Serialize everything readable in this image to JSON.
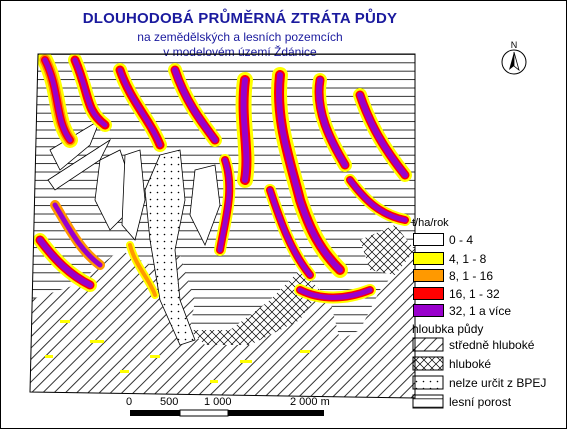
{
  "title": {
    "line1": "DLOUHODOBÁ PRŮMĚRNÁ ZTRÁTA PŮDY",
    "line2": "na zemědělských a lesních pozemcích",
    "line3": "v modelovém území Ždánice"
  },
  "legend": {
    "unit": "t/ha/rok",
    "classes": [
      {
        "label": "0 - 4",
        "color": "#ffffff"
      },
      {
        "label": "4, 1 - 8",
        "color": "#ffff00"
      },
      {
        "label": "8, 1 - 16",
        "color": "#ff9900"
      },
      {
        "label": "16, 1 - 32",
        "color": "#ff0000"
      },
      {
        "label": "32, 1 a více",
        "color": "#9900cc"
      }
    ],
    "soil_depth_title": "hloubka půdy",
    "soil_depth": [
      {
        "label": "středně hluboké",
        "pattern": "diagonal-right"
      },
      {
        "label": "hluboké",
        "pattern": "diagonal-cross"
      },
      {
        "label": "nelze určit z BPEJ",
        "pattern": "dots"
      },
      {
        "label": "lesní porost",
        "pattern": "horizontal"
      }
    ]
  },
  "scale": {
    "ticks": [
      "0",
      "500",
      "1 000",
      "2 000 m"
    ]
  },
  "north_arrow_icon": "north-arrow-icon",
  "colors": {
    "title": "#1a1a9e",
    "very_high": "#9900cc",
    "high": "#ff0000",
    "medium": "#ff9900",
    "low": "#ffff00"
  }
}
